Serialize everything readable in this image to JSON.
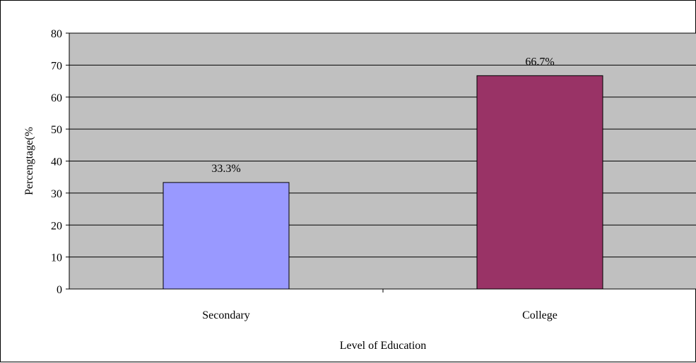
{
  "chart_data": {
    "type": "bar",
    "categories": [
      "Secondary",
      "College"
    ],
    "values": [
      33.3,
      66.7
    ],
    "data_labels": [
      "33.3%",
      "66.7%"
    ],
    "bar_colors": [
      "#9999ff",
      "#993366"
    ],
    "xlabel": "Level of Education",
    "ylabel": "Percengtage(%",
    "ylim": [
      0,
      80
    ],
    "yticks": [
      0,
      10,
      20,
      30,
      40,
      50,
      60,
      70,
      80
    ],
    "plot_background": "#c0c0c0",
    "grid": true,
    "legend": "none"
  }
}
